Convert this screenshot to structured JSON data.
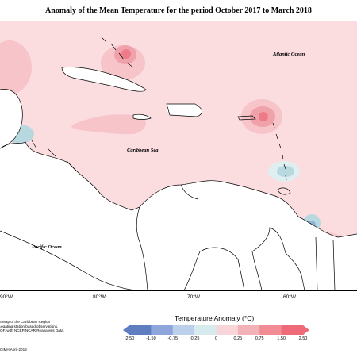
{
  "title": "Anomaly of the Mean Temperature for the period October 2017 to March 2018",
  "map": {
    "labels": {
      "atlantic": "Atlantic Ocean",
      "caribbean": "Caribbean Sea",
      "pacific": "Pacific Ocean"
    },
    "longitudes": [
      "90°W",
      "80°W",
      "70°W",
      "60°W"
    ],
    "colors": {
      "sea": "#fbdde0",
      "land": "#ffffff",
      "warm_light": "#f6c4c9",
      "warm_mid": "#f0a2aa",
      "warm_strong": "#ee7b87",
      "cool_light": "#dfeef0",
      "cool_mid": "#b8d8e0",
      "cool_strong": "#8fb4d6",
      "cool_core": "#6d8ac8",
      "coast": "#000000"
    }
  },
  "legend": {
    "title": "Temperature Anomaly (°C)",
    "ticks": [
      "-2.50",
      "-1.50",
      "-0.75",
      "-0.25",
      "0",
      "0.25",
      "0.75",
      "1.50",
      "2.50"
    ],
    "colors": [
      "#5f7ec2",
      "#8ea6dc",
      "#bcd0ec",
      "#d7ebef",
      "#ffffff",
      "#f7d5d8",
      "#f3b2b8",
      "#f18c95",
      "#ef6a78"
    ]
  },
  "notes": "ₙ Map of the Caribbean Region\nᵣegating station based observations,\nOF, with NCEP/NCAR Reanalysis Data.",
  "credit": "CIMH April-2018"
}
